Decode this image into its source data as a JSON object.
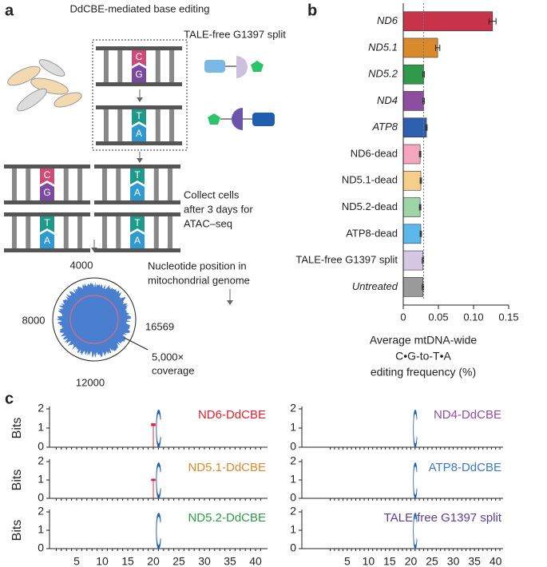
{
  "panel_labels": [
    "a",
    "b",
    "c"
  ],
  "panel_a": {
    "editing_title": "DdCBE-mediated base editing",
    "split_title": "TALE-free G1397 split",
    "collect_text": [
      "Collect cells",
      "after 3 days for",
      "ATAC–seq"
    ],
    "position_text": [
      "Nucleotide position in",
      "mitochondrial genome"
    ],
    "coverage_text": [
      "5,000×",
      "coverage"
    ],
    "circle_labels": [
      "4000",
      "8000",
      "12000",
      "16569"
    ],
    "base_pairs": [
      [
        "C",
        "G"
      ],
      [
        "T",
        "A"
      ],
      [
        "C",
        "G"
      ],
      [
        "T",
        "A"
      ],
      [
        "T",
        "A"
      ],
      [
        "T",
        "A"
      ]
    ]
  },
  "chart_data": {
    "type": "bar",
    "orientation": "horizontal",
    "categories": [
      "ND6",
      "ND5.1",
      "ND5.2",
      "ND4",
      "ATP8",
      "ND6-dead",
      "ND5.1-dead",
      "ND5.2-dead",
      "ATP8-dead",
      "TALE-free G1397 split",
      "Untreated"
    ],
    "values": [
      0.127,
      0.049,
      0.029,
      0.029,
      0.033,
      0.024,
      0.025,
      0.024,
      0.025,
      0.028,
      0.028
    ],
    "errors": [
      0.005,
      0.003,
      0.001,
      0.001,
      0.001,
      0.001,
      0.001,
      0.001,
      0.001,
      0.001,
      0.001
    ],
    "colors": [
      "#c8334a",
      "#d98a2b",
      "#2e9a4a",
      "#8e4ea0",
      "#2d5fae",
      "#f4a6bf",
      "#f5cf8a",
      "#9fd4a6",
      "#5cb8ea",
      "#d6c8e4",
      "#9a9a9a"
    ],
    "reference_line": 0.029,
    "xlim": [
      0,
      0.15
    ],
    "xticks": [
      0,
      0.05,
      {
        "value": 0.1,
        "label": "0.10"
      },
      0.15
    ],
    "x_label": [
      "Average mtDNA-wide",
      "C•G-to-T•A",
      "editing frequency (%)"
    ]
  },
  "logos": {
    "y_label": "Bits",
    "yticks": [
      0,
      1,
      2
    ],
    "ylim": [
      0,
      2
    ],
    "xlim": [
      1,
      41
    ],
    "xticks": [
      5,
      10,
      15,
      20,
      25,
      30,
      35,
      40
    ],
    "panels": [
      {
        "title": "ND6-DdCBE",
        "color": "#e0202e",
        "letters": [
          {
            "position": 20,
            "base": "T",
            "bits": 1.3,
            "color": "#e0202e"
          },
          {
            "position": 21,
            "base": "C",
            "bits": 2,
            "color": "#1f5fae"
          }
        ]
      },
      {
        "title": "ND4-DdCBE",
        "color": "#8e4ea0",
        "letters": [
          {
            "position": 21,
            "base": "C",
            "bits": 2,
            "color": "#1f5fae"
          }
        ]
      },
      {
        "title": "ND5.1-DdCBE",
        "color": "#d98a2b",
        "letters": [
          {
            "position": 20,
            "base": "T",
            "bits": 1.1,
            "color": "#e0202e"
          },
          {
            "position": 21,
            "base": "C",
            "bits": 2,
            "color": "#1f5fae"
          }
        ]
      },
      {
        "title": "ATP8-DdCBE",
        "color": "#3d78c0",
        "letters": [
          {
            "position": 21,
            "base": "C",
            "bits": 2,
            "color": "#1f5fae"
          }
        ]
      },
      {
        "title": "ND5.2-DdCBE",
        "color": "#2e9a4a",
        "letters": [
          {
            "position": 21,
            "base": "C",
            "bits": 2,
            "color": "#1f5fae"
          }
        ]
      },
      {
        "title": "TALE-free G1397 split",
        "color": "#5a3f95",
        "letters": [
          {
            "position": 21,
            "base": "C",
            "bits": 2,
            "color": "#1f5fae"
          }
        ]
      }
    ]
  }
}
